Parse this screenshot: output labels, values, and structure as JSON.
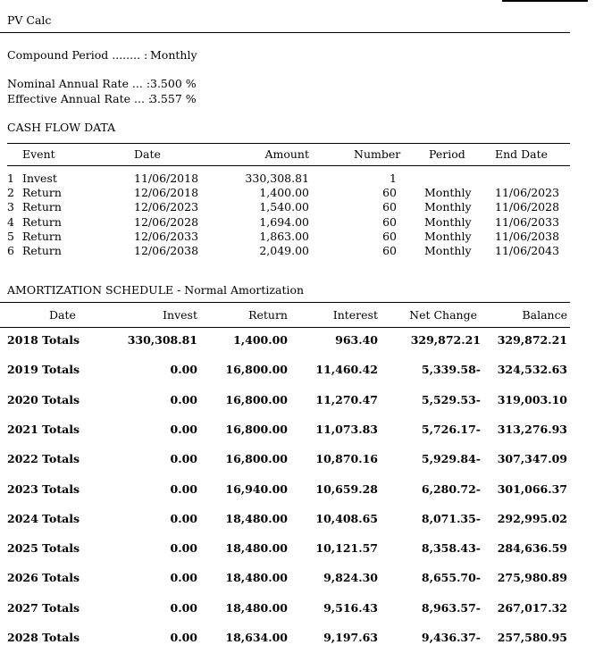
{
  "title": "PV Calc",
  "settings": {
    "compound_label": "Compound Period ........ :",
    "compound_value": "Monthly",
    "nominal_label": "Nominal Annual Rate ... :",
    "nominal_value": "3.500 %",
    "effective_label": "Effective Annual Rate ... :",
    "effective_value": "3.557 %"
  },
  "cash_flow": {
    "heading": "CASH FLOW DATA",
    "columns": [
      "Event",
      "Date",
      "Amount",
      "Number",
      "Period",
      "End Date"
    ],
    "rows": [
      {
        "idx": "1",
        "event": "Invest",
        "date": "11/06/2018",
        "amount": "330,308.81",
        "number": "1",
        "period": "",
        "end_date": ""
      },
      {
        "idx": "2",
        "event": "Return",
        "date": "12/06/2018",
        "amount": "1,400.00",
        "number": "60",
        "period": "Monthly",
        "end_date": "11/06/2023"
      },
      {
        "idx": "3",
        "event": "Return",
        "date": "12/06/2023",
        "amount": "1,540.00",
        "number": "60",
        "period": "Monthly",
        "end_date": "11/06/2028"
      },
      {
        "idx": "4",
        "event": "Return",
        "date": "12/06/2028",
        "amount": "1,694.00",
        "number": "60",
        "period": "Monthly",
        "end_date": "11/06/2033"
      },
      {
        "idx": "5",
        "event": "Return",
        "date": "12/06/2033",
        "amount": "1,863.00",
        "number": "60",
        "period": "Monthly",
        "end_date": "11/06/2038"
      },
      {
        "idx": "6",
        "event": "Return",
        "date": "12/06/2038",
        "amount": "2,049.00",
        "number": "60",
        "period": "Monthly",
        "end_date": "11/06/2043"
      }
    ]
  },
  "amortization": {
    "heading": "AMORTIZATION SCHEDULE - Normal Amortization",
    "columns": [
      "Date",
      "Invest",
      "Return",
      "Interest",
      "Net Change",
      "Balance"
    ],
    "rows": [
      {
        "date": "2018 Totals",
        "invest": "330,308.81",
        "return": "1,400.00",
        "interest": "963.40",
        "net_change": "329,872.21",
        "balance": "329,872.21"
      },
      {
        "date": "2019 Totals",
        "invest": "0.00",
        "return": "16,800.00",
        "interest": "11,460.42",
        "net_change": "5,339.58-",
        "balance": "324,532.63"
      },
      {
        "date": "2020 Totals",
        "invest": "0.00",
        "return": "16,800.00",
        "interest": "11,270.47",
        "net_change": "5,529.53-",
        "balance": "319,003.10"
      },
      {
        "date": "2021 Totals",
        "invest": "0.00",
        "return": "16,800.00",
        "interest": "11,073.83",
        "net_change": "5,726.17-",
        "balance": "313,276.93"
      },
      {
        "date": "2022 Totals",
        "invest": "0.00",
        "return": "16,800.00",
        "interest": "10,870.16",
        "net_change": "5,929.84-",
        "balance": "307,347.09"
      },
      {
        "date": "2023 Totals",
        "invest": "0.00",
        "return": "16,940.00",
        "interest": "10,659.28",
        "net_change": "6,280.72-",
        "balance": "301,066.37"
      },
      {
        "date": "2024 Totals",
        "invest": "0.00",
        "return": "18,480.00",
        "interest": "10,408.65",
        "net_change": "8,071.35-",
        "balance": "292,995.02"
      },
      {
        "date": "2025 Totals",
        "invest": "0.00",
        "return": "18,480.00",
        "interest": "10,121.57",
        "net_change": "8,358.43-",
        "balance": "284,636.59"
      },
      {
        "date": "2026 Totals",
        "invest": "0.00",
        "return": "18,480.00",
        "interest": "9,824.30",
        "net_change": "8,655.70-",
        "balance": "275,980.89"
      },
      {
        "date": "2027 Totals",
        "invest": "0.00",
        "return": "18,480.00",
        "interest": "9,516.43",
        "net_change": "8,963.57-",
        "balance": "267,017.32"
      },
      {
        "date": "2028 Totals",
        "invest": "0.00",
        "return": "18,634.00",
        "interest": "9,197.63",
        "net_change": "9,436.37-",
        "balance": "257,580.95"
      }
    ]
  }
}
